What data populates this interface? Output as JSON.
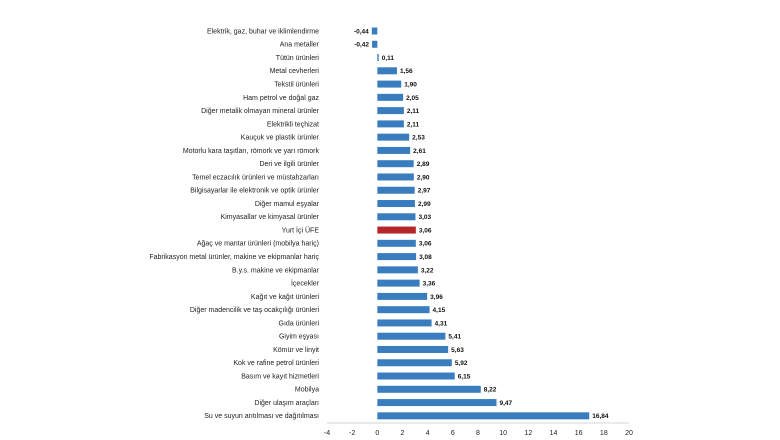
{
  "chart_data": {
    "type": "bar",
    "orientation": "horizontal",
    "categories": [
      "Elektrik, gaz, buhar ve iklimlendirme",
      "Ana metaller",
      "Tütün ürünleri",
      "Metal cevherleri",
      "Tekstil ürünleri",
      "Ham petrol ve doğal gaz",
      "Diğer metalik olmayan mineral ürünler",
      "Elektrikli teçhizat",
      "Kauçuk ve plastik ürünler",
      "Motorlu kara taşıtları, römork ve yarı römork",
      "Deri ve ilgili ürünler",
      "Temel eczacılık ürünleri ve müstahzarları",
      "Bilgisayarlar ile elektronik ve optik ürünler",
      "Diğer mamul eşyalar",
      "Kimyasallar ve kimyasal ürünler",
      "Yurt İçi ÜFE",
      "Ağaç ve mantar ürünleri (mobilya hariç)",
      "Fabrikasyon metal ürünler, makine ve ekipmanlar hariç",
      "B.y.s. makine ve ekipmanlar",
      "İçecekler",
      "Kağıt ve kağıt ürünleri",
      "Diğer madencilik ve taş ocakçılığı ürünleri",
      "Gıda ürünleri",
      "Giyim eşyası",
      "Kömür ve linyit",
      "Kok ve rafine petrol ürünleri",
      "Basım ve kayıt hizmetleri",
      "Mobilya",
      "Diğer ulaşım araçları",
      "Su ve suyun arıtılması ve dağıtılması"
    ],
    "values": [
      -0.44,
      -0.42,
      0.11,
      1.56,
      1.9,
      2.05,
      2.11,
      2.11,
      2.53,
      2.61,
      2.89,
      2.9,
      2.97,
      2.99,
      3.03,
      3.06,
      3.06,
      3.08,
      3.22,
      3.36,
      3.96,
      4.15,
      4.31,
      5.41,
      5.63,
      5.92,
      6.15,
      8.22,
      9.47,
      16.84
    ],
    "value_labels": [
      "-0,44",
      "-0,42",
      "0,11",
      "1,56",
      "1,90",
      "2,05",
      "2,11",
      "2,11",
      "2,53",
      "2,61",
      "2,89",
      "2,90",
      "2,97",
      "2,99",
      "3,03",
      "3,06",
      "3,06",
      "3,08",
      "3,22",
      "3,36",
      "3,96",
      "4,15",
      "4,31",
      "5,41",
      "5,63",
      "5,92",
      "6,15",
      "8,22",
      "9,47",
      "16,84"
    ],
    "highlight_category": "Yurt İçi ÜFE",
    "xlim": [
      -4,
      20
    ],
    "x_ticks": [
      -4,
      -2,
      0,
      2,
      4,
      6,
      8,
      10,
      12,
      14,
      16,
      18,
      20
    ],
    "x_tick_labels": [
      "-4",
      "-2",
      "0",
      "2",
      "4",
      "6",
      "8",
      "10",
      "12",
      "14",
      "16",
      "18",
      "20"
    ],
    "title": "",
    "xlabel": "",
    "ylabel": "",
    "grid": false,
    "legend": "none",
    "colors": {
      "bar": "#3a7dbf",
      "highlight": "#b5262b",
      "axis": "#c8c8c8"
    }
  }
}
